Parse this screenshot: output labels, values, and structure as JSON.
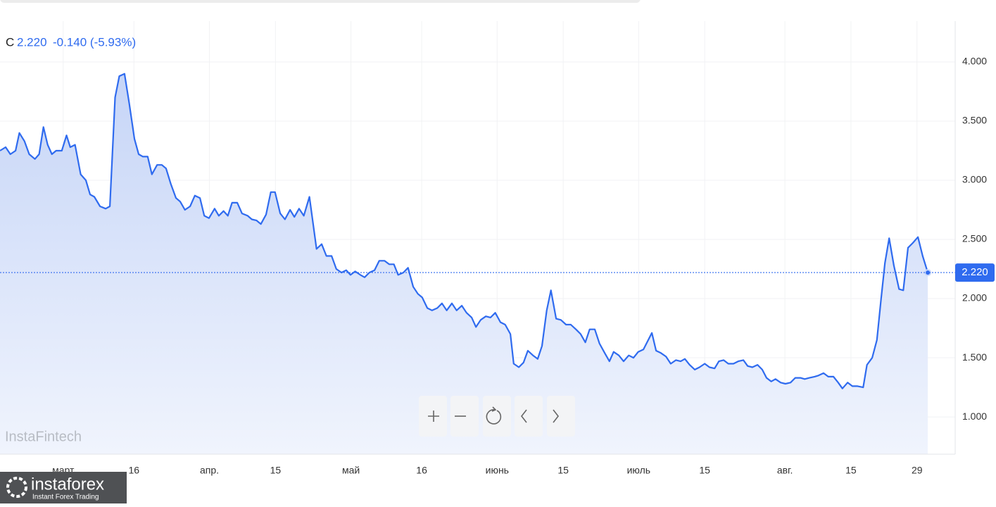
{
  "chart_data": {
    "type": "area",
    "legend": {
      "quote_prefix": "C",
      "change": "-0.140 (-5.93%)"
    },
    "last": {
      "value": 2.22,
      "label": "2.220"
    },
    "watermark": "InstaFintech",
    "brand": {
      "name": "instaforex",
      "tagline": "Instant Forex Trading"
    },
    "series": [
      {
        "name": "C",
        "color": "#2f6bef",
        "x": [
          -13.4,
          -12.2,
          -11.2,
          -10.1,
          -9.3,
          -8.2,
          -7.2,
          -6.0,
          -5.1,
          -4.2,
          -3.3,
          -2.4,
          -1.5,
          -0.3,
          0.7,
          1.5,
          2.5,
          3.7,
          4.8,
          5.7,
          6.6,
          7.8,
          9.0,
          9.9,
          11.0,
          11.9,
          13.0,
          14.0,
          15.1,
          16.0,
          16.9,
          17.9,
          18.8,
          19.9,
          20.9,
          21.8,
          22.8,
          23.9,
          24.8,
          25.8,
          26.9,
          27.9,
          29.0,
          29.9,
          30.9,
          32.1,
          33.0,
          34.0,
          34.9,
          35.8,
          36.9,
          37.9,
          39.1,
          40.0,
          41.0,
          41.9,
          43.0,
          44.0,
          44.9,
          46.0,
          47.0,
          48.1,
          49.0,
          50.0,
          51.0,
          52.2,
          53.7,
          54.8,
          55.8,
          56.9,
          57.9,
          59.0,
          60.0,
          60.9,
          61.9,
          63.0,
          63.9,
          64.9,
          66.0,
          67.0,
          68.1,
          69.1,
          70.1,
          71.0,
          72.1,
          73.1,
          74.2,
          75.2,
          76.1,
          77.2,
          78.2,
          79.3,
          80.3,
          81.3,
          82.4,
          83.4,
          84.5,
          85.5,
          86.6,
          87.5,
          88.5,
          89.6,
          90.6,
          91.6,
          92.7,
          93.7,
          94.8,
          95.5,
          96.6,
          97.6,
          98.5,
          99.6,
          100.6,
          101.5,
          102.5,
          103.4,
          104.5,
          105.5,
          106.6,
          107.6,
          108.7,
          109.7,
          110.7,
          111.6,
          112.7,
          113.7,
          114.8,
          115.8,
          116.7,
          117.8,
          118.8,
          119.9,
          120.9,
          121.9,
          123.0,
          123.9,
          124.8,
          125.7,
          126.7,
          127.8,
          128.8,
          129.9,
          130.9,
          131.8,
          132.8,
          133.9,
          134.9,
          136.0,
          137.0,
          138.1,
          139.0,
          140.0,
          141.0,
          142.1,
          143.1,
          144.2,
          145.1,
          146.1,
          147.2,
          148.2,
          149.1,
          150.1,
          151.0,
          152.1,
          153.1,
          154.2,
          155.2,
          156.3,
          157.2,
          158.2,
          159.3,
          160.1,
          161.2,
          162.2,
          163.3,
          164.3,
          165.2,
          166.3,
          167.3,
          168.4,
          169.6,
          170.4,
          171.5,
          172.5,
          173.4,
          174.2,
          175.1,
          176.1,
          177.2,
          178.1,
          179.1,
          180.1,
          181.2,
          182.2,
          183.3
        ],
        "values": [
          3.25,
          3.28,
          3.22,
          3.25,
          3.4,
          3.33,
          3.22,
          3.18,
          3.22,
          3.45,
          3.3,
          3.22,
          3.25,
          3.25,
          3.38,
          3.28,
          3.3,
          3.05,
          3.0,
          2.88,
          2.86,
          2.78,
          2.76,
          2.78,
          3.7,
          3.88,
          3.9,
          3.65,
          3.35,
          3.22,
          3.2,
          3.2,
          3.05,
          3.13,
          3.13,
          3.1,
          2.97,
          2.85,
          2.82,
          2.75,
          2.78,
          2.87,
          2.85,
          2.7,
          2.68,
          2.76,
          2.7,
          2.74,
          2.7,
          2.81,
          2.81,
          2.72,
          2.7,
          2.67,
          2.66,
          2.63,
          2.71,
          2.9,
          2.9,
          2.72,
          2.67,
          2.75,
          2.69,
          2.76,
          2.7,
          2.86,
          2.42,
          2.46,
          2.36,
          2.36,
          2.25,
          2.22,
          2.24,
          2.2,
          2.23,
          2.2,
          2.18,
          2.22,
          2.24,
          2.32,
          2.32,
          2.29,
          2.29,
          2.2,
          2.22,
          2.26,
          2.1,
          2.04,
          2.01,
          1.92,
          1.9,
          1.92,
          1.96,
          1.9,
          1.96,
          1.9,
          1.94,
          1.88,
          1.84,
          1.76,
          1.82,
          1.85,
          1.84,
          1.88,
          1.8,
          1.78,
          1.7,
          1.45,
          1.42,
          1.46,
          1.56,
          1.52,
          1.49,
          1.6,
          1.9,
          2.07,
          1.83,
          1.82,
          1.78,
          1.78,
          1.74,
          1.7,
          1.63,
          1.74,
          1.74,
          1.62,
          1.54,
          1.47,
          1.55,
          1.52,
          1.47,
          1.52,
          1.5,
          1.55,
          1.57,
          1.64,
          1.71,
          1.56,
          1.54,
          1.51,
          1.45,
          1.48,
          1.47,
          1.49,
          1.44,
          1.4,
          1.42,
          1.45,
          1.42,
          1.41,
          1.47,
          1.48,
          1.45,
          1.45,
          1.47,
          1.48,
          1.43,
          1.42,
          1.44,
          1.4,
          1.33,
          1.3,
          1.32,
          1.29,
          1.28,
          1.29,
          1.33,
          1.33,
          1.32,
          1.33,
          1.34,
          1.35,
          1.37,
          1.34,
          1.34,
          1.29,
          1.24,
          1.29,
          1.26,
          1.26,
          1.25,
          1.44,
          1.5,
          1.65,
          2.0,
          2.3,
          2.51,
          2.28,
          2.08,
          2.07,
          2.43,
          2.47,
          2.52,
          2.36,
          2.22
        ]
      }
    ],
    "xlim": [
      -13.4,
      188.8
    ],
    "xticks": [
      {
        "value": 0,
        "label": "март"
      },
      {
        "value": 15,
        "label": "16"
      },
      {
        "value": 31,
        "label": "апр."
      },
      {
        "value": 45,
        "label": "15"
      },
      {
        "value": 61,
        "label": "май"
      },
      {
        "value": 76,
        "label": "16"
      },
      {
        "value": 92,
        "label": "июнь"
      },
      {
        "value": 106,
        "label": "15"
      },
      {
        "value": 122,
        "label": "июль"
      },
      {
        "value": 136,
        "label": "15"
      },
      {
        "value": 153,
        "label": "авг."
      },
      {
        "value": 167,
        "label": "15"
      },
      {
        "value": 181,
        "label": "29"
      }
    ],
    "ylim": [
      0.685,
      4.345
    ],
    "yticks": [
      {
        "value": 1,
        "label": "1.000"
      },
      {
        "value": 1.5,
        "label": "1.500"
      },
      {
        "value": 2,
        "label": "2.000"
      },
      {
        "value": 2.5,
        "label": "2.500"
      },
      {
        "value": 3,
        "label": "3.000"
      },
      {
        "value": 3.5,
        "label": "3.500"
      },
      {
        "value": 4,
        "label": "4.000"
      }
    ],
    "grid": true
  }
}
